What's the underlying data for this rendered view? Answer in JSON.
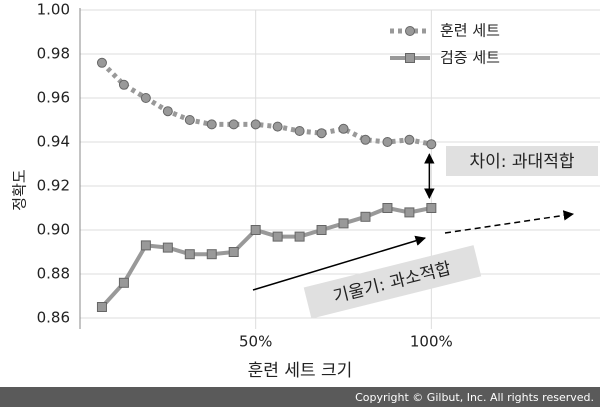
{
  "chart_data": {
    "type": "line",
    "x_label": "훈련 세트 크기",
    "y_label": "정확도",
    "x": [
      6.25,
      12.5,
      18.75,
      25,
      31.25,
      37.5,
      43.75,
      50,
      56.25,
      62.5,
      68.75,
      75,
      81.25,
      87.5,
      93.75,
      100
    ],
    "series": [
      {
        "name": "훈련 세트",
        "color": "#999999",
        "marker": "circle",
        "linestyle": "dotted",
        "values": [
          0.976,
          0.966,
          0.96,
          0.954,
          0.95,
          0.948,
          0.948,
          0.948,
          0.947,
          0.945,
          0.944,
          0.946,
          0.941,
          0.94,
          0.941,
          0.939
        ]
      },
      {
        "name": "검증 세트",
        "color": "#999999",
        "marker": "square",
        "linestyle": "solid",
        "values": [
          0.865,
          0.876,
          0.893,
          0.892,
          0.889,
          0.889,
          0.89,
          0.9,
          0.897,
          0.897,
          0.9,
          0.903,
          0.906,
          0.91,
          0.908,
          0.91
        ]
      }
    ],
    "xlim": [
      0,
      148
    ],
    "xticks": [
      {
        "value": 50,
        "label": "50%"
      },
      {
        "value": 100,
        "label": "100%"
      }
    ],
    "ylim": [
      0.855,
      1.0
    ],
    "yticks": [
      {
        "value": 0.86,
        "label": "0.86"
      },
      {
        "value": 0.88,
        "label": "0.88"
      },
      {
        "value": 0.9,
        "label": "0.90"
      },
      {
        "value": 0.92,
        "label": "0.92"
      },
      {
        "value": 0.94,
        "label": "0.94"
      },
      {
        "value": 0.96,
        "label": "0.96"
      },
      {
        "value": 0.98,
        "label": "0.98"
      },
      {
        "value": 1.0,
        "label": "1.00"
      }
    ],
    "grid": true,
    "legend": "upper right",
    "annotations": [
      {
        "text": "차이: 과대적합"
      },
      {
        "text": "기울기: 과소적합"
      }
    ]
  },
  "footer": "Copyright © Gilbut, Inc. All rights reserved."
}
